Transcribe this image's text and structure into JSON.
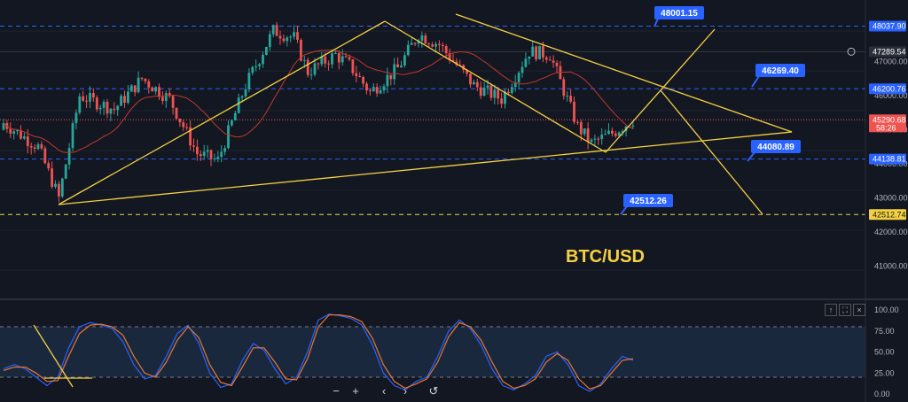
{
  "chart_data": [
    {
      "type": "candlestick",
      "title": "BTC/USD",
      "ylim": [
        40300,
        48400
      ],
      "y_ticks": [
        "41000.00",
        "42000.00",
        "43000.00",
        "44000.00",
        "45000.00",
        "46000.00",
        "47000.00"
      ],
      "price_tags": [
        {
          "value": "48037.90",
          "color": "#2962ff",
          "style": "dashed-blue"
        },
        {
          "value": "47289.54",
          "color": "#2a2e39",
          "style": "gray"
        },
        {
          "value": "46200.76",
          "color": "#2962ff",
          "style": "dashed-blue"
        },
        {
          "value": "45290.68",
          "sub": "58:26",
          "color": "#ef5350",
          "style": "current"
        },
        {
          "value": "44138.81",
          "color": "#2962ff",
          "style": "dashed-blue"
        },
        {
          "value": "42512.74",
          "color": "#f5d142",
          "style": "dashed-yellow"
        }
      ],
      "level_labels": [
        "48001.15",
        "46269.40",
        "44080.89",
        "42512.26"
      ],
      "colors": {
        "up": "#26a69a",
        "down": "#ef5350",
        "pattern": "#f5d142",
        "label": "#2962ff",
        "ma": "#c0392b"
      }
    },
    {
      "type": "line",
      "indicator": "stochastic",
      "ylim": [
        0,
        100
      ],
      "y_ticks": [
        "0.00",
        "25.00",
        "50.00",
        "75.00",
        "100.00"
      ],
      "band": [
        20,
        80
      ],
      "series": [
        {
          "color": "#2962ff",
          "values": [
            30,
            35,
            30,
            20,
            10,
            20,
            55,
            80,
            85,
            82,
            78,
            62,
            35,
            18,
            22,
            45,
            72,
            82,
            60,
            25,
            8,
            12,
            40,
            60,
            52,
            30,
            12,
            20,
            50,
            88,
            95,
            93,
            90,
            82,
            58,
            25,
            10,
            5,
            15,
            20,
            45,
            75,
            88,
            78,
            58,
            30,
            10,
            5,
            12,
            22,
            45,
            50,
            35,
            10,
            3,
            12,
            30,
            45,
            40
          ]
        },
        {
          "color": "#e9772e",
          "values": [
            28,
            32,
            32,
            25,
            15,
            16,
            45,
            72,
            82,
            83,
            80,
            70,
            45,
            25,
            20,
            38,
            64,
            80,
            67,
            35,
            14,
            10,
            32,
            55,
            55,
            38,
            18,
            17,
            42,
            80,
            94,
            94,
            92,
            86,
            66,
            35,
            15,
            7,
            12,
            18,
            38,
            68,
            85,
            80,
            64,
            38,
            15,
            7,
            10,
            18,
            38,
            48,
            40,
            18,
            6,
            10,
            25,
            40,
            42
          ]
        }
      ]
    }
  ],
  "controls": {
    "minus": "−",
    "plus": "+",
    "prev": "‹",
    "next": "›",
    "reset": "↺",
    "up": "↑",
    "max": "⛶",
    "close": "×"
  }
}
